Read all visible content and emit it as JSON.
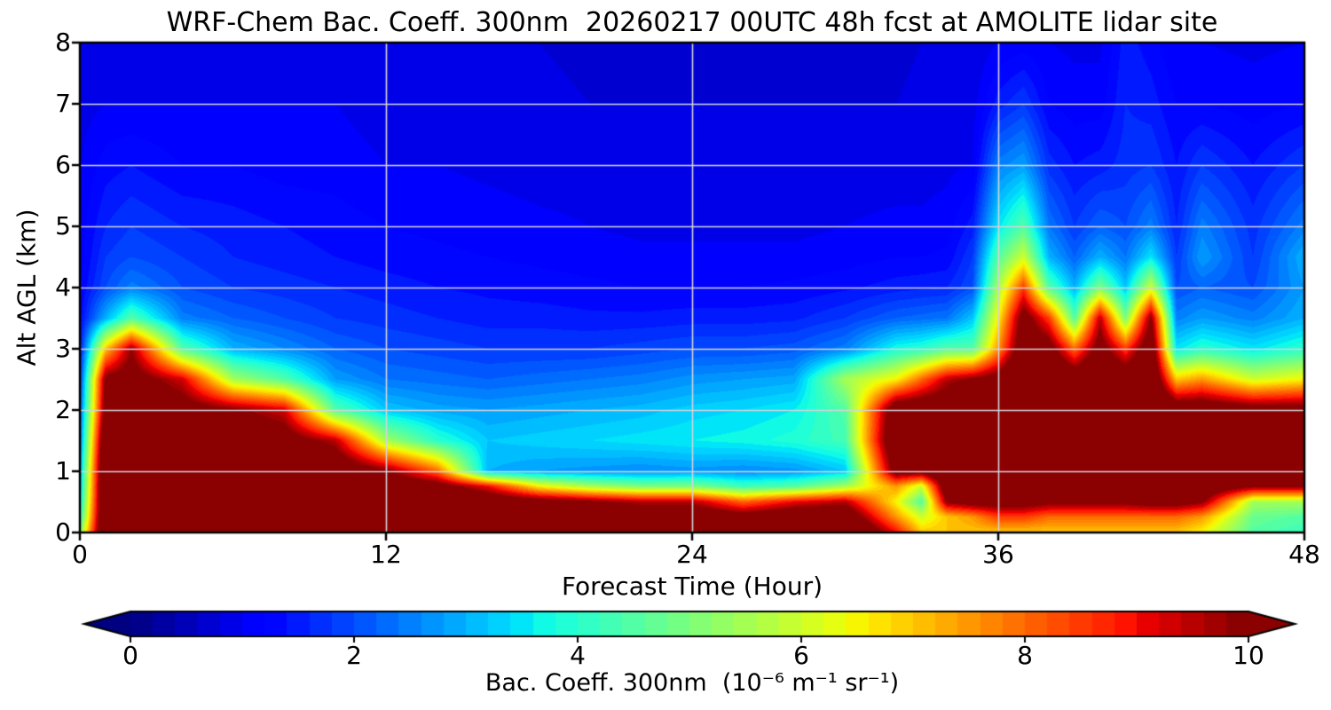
{
  "chart_data": {
    "type": "heatmap",
    "title": "WRF-Chem Bac. Coeff. 300nm  20260217 00UTC 48h fcst at AMOLITE lidar site",
    "xlabel": "Forecast Time (Hour)",
    "ylabel": "Alt AGL (km)",
    "xlim": [
      0,
      48
    ],
    "ylim": [
      0,
      8
    ],
    "x_ticks": [
      0,
      12,
      24,
      36,
      48
    ],
    "y_ticks": [
      0,
      1,
      2,
      3,
      4,
      5,
      6,
      7,
      8
    ],
    "grid": true,
    "grid_x": [
      12,
      24,
      36
    ],
    "grid_y": [
      1,
      2,
      3,
      4,
      5,
      6,
      7
    ],
    "grid_color": "#d4d4da",
    "colorbar": {
      "label": "Bac. Coeff. 300nm  (10⁻⁶ m⁻¹ sr⁻¹)",
      "ticks": [
        0,
        2,
        4,
        6,
        8,
        10
      ],
      "vmin": 0,
      "vmax": 10,
      "cmap": "jet",
      "extend": "both",
      "levels_step": 0.2,
      "under_color": "#000080",
      "over_color": "#8b0000"
    },
    "units": "10⁻⁶ m⁻¹ sr⁻¹",
    "x_hours": [
      0,
      1,
      2,
      4,
      6,
      8,
      10,
      12,
      14,
      16,
      18,
      20,
      22,
      24,
      26,
      28,
      30,
      32,
      33,
      34,
      35,
      36,
      37,
      38,
      39,
      40,
      41,
      42,
      43,
      44,
      46,
      48
    ],
    "alt_km": [
      0,
      0.25,
      0.5,
      0.75,
      1,
      1.5,
      2,
      2.5,
      3,
      3.5,
      4,
      4.5,
      5,
      6,
      7,
      8
    ],
    "values": [
      [
        5,
        4,
        3.5,
        3.2,
        3,
        2.5,
        2.2,
        1.8,
        1.5,
        1.3,
        1.2,
        1.1,
        1.1,
        1,
        0.9,
        0.85
      ],
      [
        12,
        12,
        12,
        12,
        12,
        11.5,
        10.5,
        10.2,
        7,
        3,
        2,
        1.8,
        1.6,
        1.3,
        1,
        0.9
      ],
      [
        12,
        12,
        12,
        12,
        12,
        11.5,
        11,
        10.5,
        9.8,
        4.5,
        2.5,
        2,
        1.8,
        1.4,
        1,
        0.9
      ],
      [
        12,
        12,
        12,
        12,
        11.5,
        11,
        10.5,
        9.3,
        4.5,
        2.5,
        2,
        1.8,
        1.6,
        1.2,
        1,
        0.9
      ],
      [
        12,
        12,
        12,
        12,
        11.5,
        11,
        10,
        5.5,
        3,
        2.2,
        1.8,
        1.6,
        1.5,
        1.2,
        1,
        0.9
      ],
      [
        12,
        12,
        12,
        11.5,
        11,
        10.5,
        9.3,
        4.5,
        2.6,
        2,
        1.7,
        1.5,
        1.4,
        1.1,
        1,
        0.9
      ],
      [
        12,
        12,
        12,
        11.5,
        11,
        9.5,
        4.5,
        2.8,
        2.2,
        1.8,
        1.6,
        1.4,
        1.3,
        1.1,
        1,
        0.9
      ],
      [
        12,
        12,
        12,
        11,
        10,
        5.5,
        3.2,
        2.4,
        2,
        1.7,
        1.5,
        1.3,
        1.2,
        1,
        0.9,
        0.85
      ],
      [
        12,
        12,
        11.5,
        10.5,
        8,
        4,
        2.9,
        2.3,
        1.9,
        1.6,
        1.4,
        1.25,
        1.15,
        1,
        0.9,
        0.85
      ],
      [
        12,
        12,
        11,
        9,
        3,
        3.2,
        2.8,
        2.2,
        1.8,
        1.5,
        1.35,
        1.2,
        1.1,
        0.95,
        0.85,
        0.8
      ],
      [
        12,
        11.5,
        10.5,
        6.5,
        2.8,
        3.3,
        2.9,
        2.3,
        1.8,
        1.5,
        1.3,
        1.15,
        1.05,
        0.9,
        0.85,
        0.8
      ],
      [
        12,
        11.5,
        10,
        5.5,
        2.7,
        3.4,
        3,
        2.4,
        1.8,
        1.45,
        1.25,
        1.1,
        1,
        0.9,
        0.8,
        0.75
      ],
      [
        12,
        11,
        9.5,
        5,
        2.6,
        3.5,
        3.1,
        2.5,
        1.9,
        1.45,
        1.2,
        1.05,
        0.95,
        0.85,
        0.8,
        0.75
      ],
      [
        12,
        11,
        9.5,
        5,
        2.7,
        3.6,
        3.3,
        2.7,
        2,
        1.5,
        1.2,
        1.05,
        0.95,
        0.85,
        0.8,
        0.75
      ],
      [
        12,
        10.5,
        8,
        4.2,
        2.6,
        3.7,
        3.4,
        2.8,
        2,
        1.5,
        1.2,
        1.05,
        0.95,
        0.85,
        0.8,
        0.75
      ],
      [
        12,
        11,
        9,
        4.5,
        2.7,
        3.9,
        3.6,
        2.9,
        2.1,
        1.55,
        1.25,
        1.05,
        0.95,
        0.85,
        0.8,
        0.75
      ],
      [
        12,
        11,
        9.5,
        5.5,
        3.2,
        4.3,
        4.5,
        5.5,
        2.5,
        1.8,
        1.35,
        1.1,
        1,
        0.9,
        0.8,
        0.75
      ],
      [
        9,
        7.5,
        6.5,
        7.5,
        10.5,
        11.5,
        11,
        6.5,
        3.8,
        2.2,
        1.5,
        1.2,
        1.05,
        0.9,
        0.8,
        0.75
      ],
      [
        7,
        6,
        4.5,
        6,
        10.5,
        11.5,
        11,
        8,
        4,
        2.3,
        1.55,
        1.2,
        1.05,
        0.9,
        0.85,
        0.8
      ],
      [
        7,
        7,
        10,
        11,
        11.5,
        12,
        11,
        9.5,
        4.5,
        2.4,
        1.6,
        1.25,
        1.1,
        0.95,
        0.85,
        0.8
      ],
      [
        7,
        7.5,
        10.5,
        11,
        11.5,
        12,
        11.5,
        10,
        4.5,
        3.2,
        2,
        1.8,
        1.5,
        1,
        0.9,
        0.8
      ],
      [
        7,
        8.5,
        10.5,
        11.5,
        12,
        12,
        12,
        10.5,
        7.5,
        6.5,
        5.5,
        4.5,
        3.5,
        2.5,
        1.5,
        1
      ],
      [
        7,
        8.5,
        10.5,
        11.5,
        12,
        12,
        12,
        12,
        11,
        10.5,
        8.5,
        6,
        4.5,
        2.8,
        1.8,
        1.1
      ],
      [
        7,
        8,
        10.2,
        11,
        11.5,
        12,
        12,
        11.5,
        10.5,
        8.5,
        4.5,
        3,
        2.4,
        1.7,
        1.2,
        1
      ],
      [
        7,
        8,
        10.2,
        11,
        11.5,
        12,
        11.5,
        11,
        8,
        4.5,
        3,
        2.2,
        1.8,
        1.4,
        1.1,
        0.95
      ],
      [
        7,
        8,
        10.2,
        11,
        11.5,
        12,
        12,
        11.5,
        10.5,
        9.5,
        5,
        3,
        2.2,
        1.5,
        1.1,
        0.95
      ],
      [
        7,
        8,
        10.2,
        11,
        11,
        11.5,
        11.5,
        11,
        8.5,
        5,
        3.2,
        2.4,
        2,
        1.7,
        1.6,
        1.5
      ],
      [
        7,
        8,
        10.5,
        11,
        11,
        12,
        12,
        11.5,
        11,
        10,
        6,
        3.5,
        2.5,
        1.8,
        1.5,
        1.3
      ],
      [
        7,
        8,
        10.5,
        11,
        11,
        11.5,
        11,
        7,
        3.5,
        2.5,
        2,
        1.8,
        1.6,
        1.4,
        1.2,
        1
      ],
      [
        6.5,
        7.5,
        10,
        11,
        11,
        11.5,
        11,
        7.5,
        4,
        2.8,
        2.2,
        2.8,
        2.5,
        1.8,
        1.2,
        1
      ],
      [
        4.5,
        4.8,
        5.5,
        10,
        11,
        11.5,
        10.5,
        6,
        3.5,
        2.5,
        2,
        1.8,
        1.7,
        1.4,
        1.1,
        0.95
      ],
      [
        4.2,
        4.5,
        5.5,
        10,
        11,
        11.5,
        10.5,
        6.5,
        4,
        3,
        2.8,
        3,
        2.5,
        1.8,
        1.2,
        1
      ]
    ]
  }
}
